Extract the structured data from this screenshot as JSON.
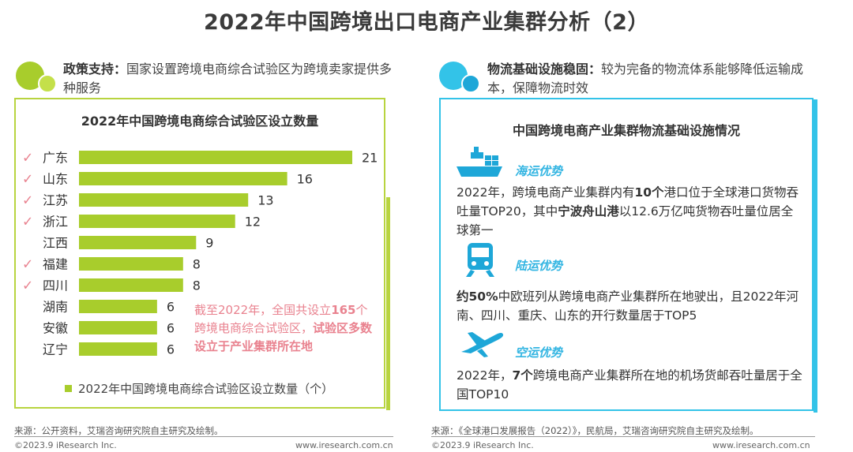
{
  "page": {
    "title": "2022年中国跨境出口电商产业集群分析（2）"
  },
  "left": {
    "header_bold": "政策支持：",
    "header_text": "国家设置跨境电商综合试验区为跨境卖家提供多种服务",
    "note_part1": "截至2022年，全国共设立",
    "note_bold1": "165",
    "note_part2": "个跨境电商综合试验区，",
    "note_bold2": "试验区多数设立于产业集群所在地",
    "source": "来源：公开资料，艾瑞咨询研究院自主研究及绘制。",
    "copyright": "©2023.9 iResearch Inc.",
    "url": "www.iresearch.com.cn"
  },
  "right": {
    "header_bold": "物流基础设施稳固：",
    "header_text": "较为完备的物流体系能够降低运输成本，保障物流时效",
    "title": "中国跨境电商产业集群物流基础设施情况",
    "sea": {
      "label": "海运优势",
      "t1": "2022年，跨境电商产业集群内有",
      "b1": "10个",
      "t2": "港口位于全球港口货物吞吐量TOP20，其中",
      "b2": "宁波舟山港",
      "t3": "以12.6万亿吨货物吞吐量位居全球第一"
    },
    "land": {
      "label": "陆运优势",
      "b1": "约50%",
      "t1": "中欧班列从跨境电商产业集群所在地驶出，且2022年河南、四川、重庆、山东的开行数量居于TOP5"
    },
    "air": {
      "label": "空运优势",
      "t1": "2022年，",
      "b1": "7个",
      "t2": "跨境电商产业集群所在地的机场货邮吞吐量居于全国TOP10"
    },
    "source": "来源：《全球港口发展报告（2022）》，民航局，艾瑞咨询研究院自主研究及绘制。",
    "copyright": "©2023.9 iResearch Inc.",
    "url": "www.iresearch.com.cn"
  },
  "colors": {
    "green": "#a8cd2c",
    "green_border": "#b8d43f",
    "blue": "#33c3e8",
    "pink": "#e9828f"
  },
  "chart_data": {
    "type": "bar",
    "orientation": "horizontal",
    "title": "2022年中国跨境电商综合试验区设立数量",
    "categories": [
      "广东",
      "山东",
      "江苏",
      "浙江",
      "江西",
      "福建",
      "四川",
      "湖南",
      "安徽",
      "辽宁"
    ],
    "values": [
      21,
      16,
      13,
      12,
      9,
      8,
      8,
      6,
      6,
      6
    ],
    "checked": [
      true,
      true,
      true,
      true,
      false,
      true,
      true,
      false,
      false,
      false
    ],
    "xlim": [
      0,
      21
    ],
    "legend": "2022年中国跨境电商综合试验区设立数量（个）",
    "check_mark": "✓"
  }
}
